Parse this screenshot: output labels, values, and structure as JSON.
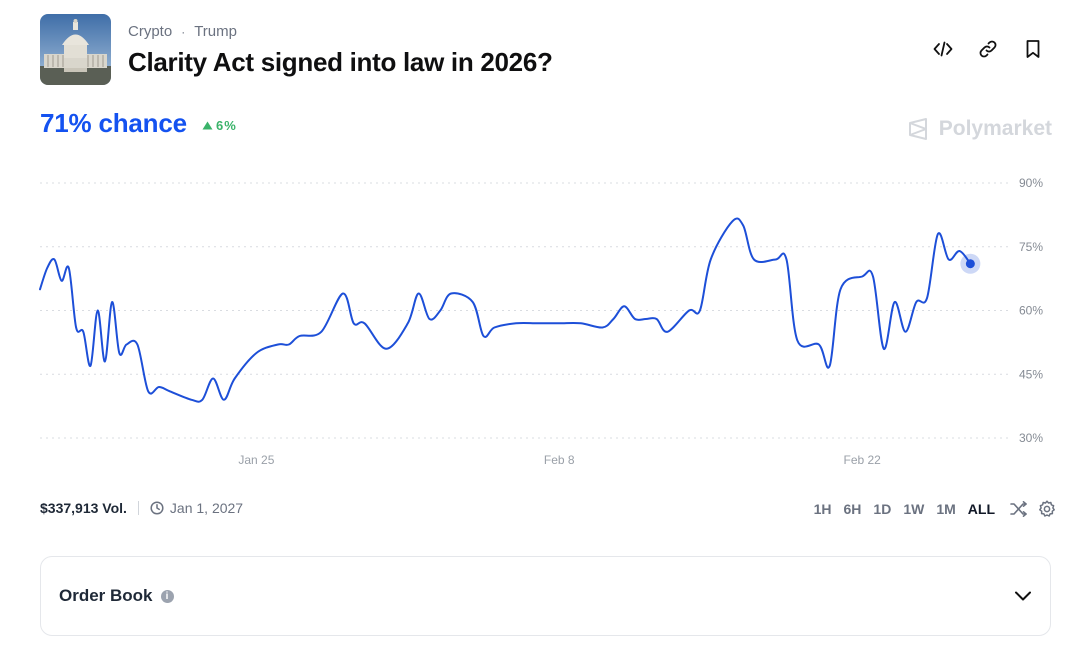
{
  "market": {
    "breadcrumb": [
      "Crypto",
      "Trump"
    ],
    "breadcrumb_separator": "·",
    "title": "Clarity Act signed into law in 2026?",
    "image_icon": "capitol-building-image"
  },
  "actions": [
    "embed-icon",
    "link-icon",
    "bookmark-icon"
  ],
  "outcome": {
    "chance_text": "71% chance",
    "delta_text": "6%",
    "delta_direction": "up",
    "delta_color": "#3ab36a",
    "accent_color": "#1452f0"
  },
  "brand": {
    "name": "Polymarket"
  },
  "chart_data": {
    "type": "line",
    "series": [
      {
        "color": "#1d4fd8",
        "points": [
          [
            "2026-01-15",
            65
          ],
          [
            "2026-01-15",
            70
          ],
          [
            "2026-01-15",
            72
          ],
          [
            "2026-01-16",
            67
          ],
          [
            "2026-01-16",
            70
          ],
          [
            "2026-01-16",
            56
          ],
          [
            "2026-01-17",
            55
          ],
          [
            "2026-01-17",
            47
          ],
          [
            "2026-01-17",
            60
          ],
          [
            "2026-01-18",
            48
          ],
          [
            "2026-01-18",
            62
          ],
          [
            "2026-01-18",
            50
          ],
          [
            "2026-01-19",
            52
          ],
          [
            "2026-01-19",
            52
          ],
          [
            "2026-01-20",
            41
          ],
          [
            "2026-01-20",
            42
          ],
          [
            "2026-01-21",
            41
          ],
          [
            "2026-01-22",
            39
          ],
          [
            "2026-01-22",
            39
          ],
          [
            "2026-01-23",
            44
          ],
          [
            "2026-01-23",
            39
          ],
          [
            "2026-01-24",
            44
          ],
          [
            "2026-01-25",
            50
          ],
          [
            "2026-01-26",
            52
          ],
          [
            "2026-01-26",
            52
          ],
          [
            "2026-01-27",
            54
          ],
          [
            "2026-01-28",
            55
          ],
          [
            "2026-01-29",
            64
          ],
          [
            "2026-01-29",
            57
          ],
          [
            "2026-01-30",
            57
          ],
          [
            "2026-01-31",
            51
          ],
          [
            "2026-02-01",
            57
          ],
          [
            "2026-02-01",
            64
          ],
          [
            "2026-02-02",
            58
          ],
          [
            "2026-02-02",
            60
          ],
          [
            "2026-02-03",
            64
          ],
          [
            "2026-02-04",
            62
          ],
          [
            "2026-02-04",
            54
          ],
          [
            "2026-02-05",
            56
          ],
          [
            "2026-02-06",
            57
          ],
          [
            "2026-02-07",
            57
          ],
          [
            "2026-02-08",
            57
          ],
          [
            "2026-02-09",
            57
          ],
          [
            "2026-02-10",
            56
          ],
          [
            "2026-02-10",
            58
          ],
          [
            "2026-02-11",
            61
          ],
          [
            "2026-02-11",
            58
          ],
          [
            "2026-02-12",
            58
          ],
          [
            "2026-02-12",
            58
          ],
          [
            "2026-02-13",
            55
          ],
          [
            "2026-02-14",
            60
          ],
          [
            "2026-02-14",
            60
          ],
          [
            "2026-02-15",
            72
          ],
          [
            "2026-02-16",
            81
          ],
          [
            "2026-02-16",
            80
          ],
          [
            "2026-02-17",
            72
          ],
          [
            "2026-02-18",
            72
          ],
          [
            "2026-02-18",
            72
          ],
          [
            "2026-02-19",
            53
          ],
          [
            "2026-02-20",
            52
          ],
          [
            "2026-02-20",
            47
          ],
          [
            "2026-02-21",
            65
          ],
          [
            "2026-02-22",
            68
          ],
          [
            "2026-02-22",
            68
          ],
          [
            "2026-02-23",
            51
          ],
          [
            "2026-02-23",
            62
          ],
          [
            "2026-02-24",
            55
          ],
          [
            "2026-02-24",
            62
          ],
          [
            "2026-02-25",
            63
          ],
          [
            "2026-02-25",
            78
          ],
          [
            "2026-02-26",
            72
          ],
          [
            "2026-02-26",
            74
          ],
          [
            "2026-02-27",
            71
          ]
        ]
      }
    ],
    "current_point": [
      "2026-02-27",
      71
    ],
    "ylim": [
      30,
      90
    ],
    "y_ticks": [
      90,
      75,
      60,
      45,
      30
    ],
    "y_tick_labels": [
      "90%",
      "75%",
      "60%",
      "45%",
      "30%"
    ],
    "x_ticks": [
      "2026-01-25",
      "2026-02-08",
      "2026-02-22"
    ],
    "x_tick_labels": [
      "Jan 25",
      "Feb 8",
      "Feb 22"
    ],
    "grid": "horizontal dotted",
    "title": "",
    "xlabel": "",
    "ylabel": ""
  },
  "footer": {
    "volume": "$337,913 Vol.",
    "end_date": "Jan 1, 2027",
    "ranges": [
      "1H",
      "6H",
      "1D",
      "1W",
      "1M",
      "ALL"
    ],
    "active_range": "ALL"
  },
  "order_book": {
    "title": "Order Book",
    "info": "i"
  }
}
